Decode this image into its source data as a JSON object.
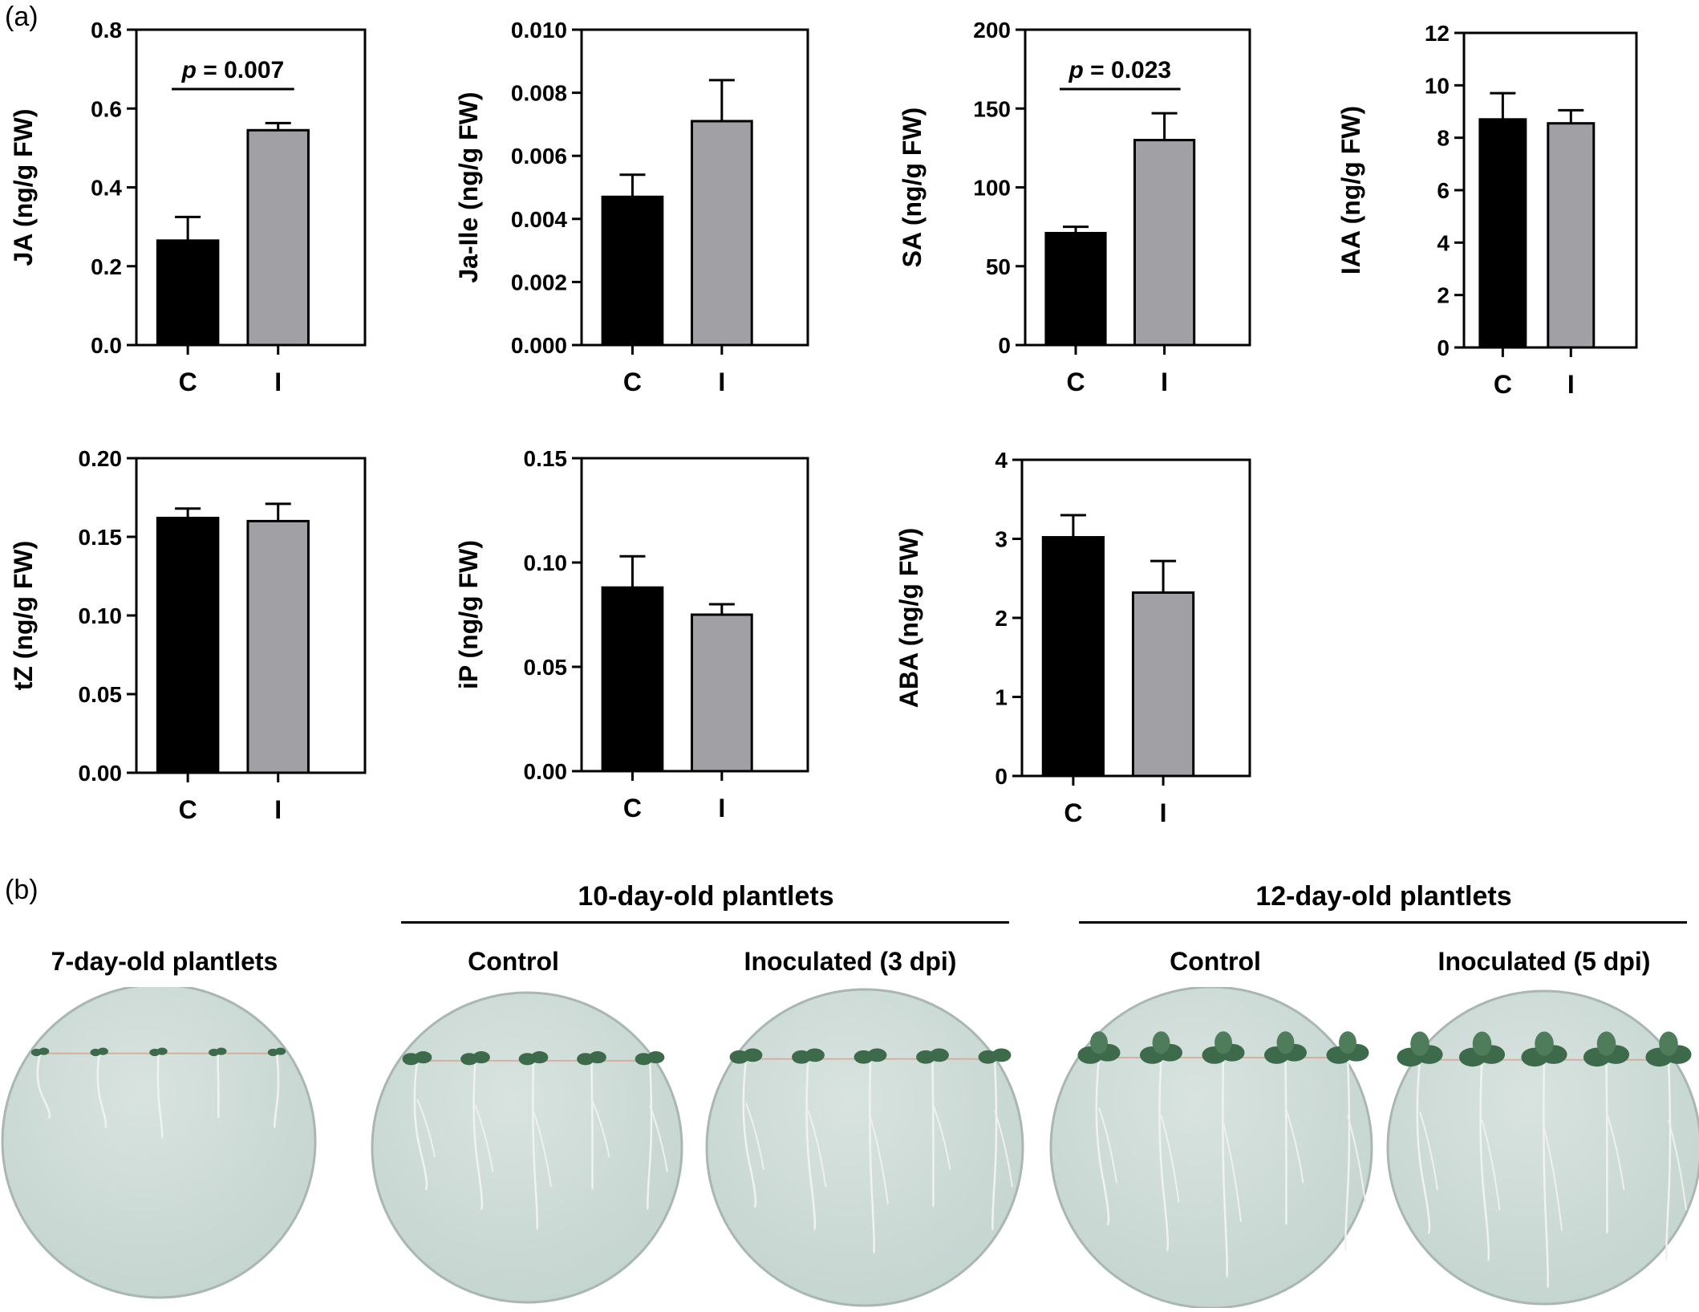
{
  "panel_a_label": "(a)",
  "panel_b_label": "(b)",
  "chart_data": [
    {
      "type": "bar",
      "categories": [
        "C",
        "I"
      ],
      "values": [
        0.265,
        0.545
      ],
      "errors": [
        0.06,
        0.018
      ],
      "ylabel": "JA (ng/g FW)",
      "ylim": [
        0,
        0.8
      ],
      "yticks": [
        "0.0",
        "0.2",
        "0.4",
        "0.6",
        "0.8"
      ],
      "significance": "= 0.007",
      "colors": [
        "#000000",
        "#a0a0a5"
      ]
    },
    {
      "type": "bar",
      "categories": [
        "C",
        "I"
      ],
      "values": [
        0.0047,
        0.0071
      ],
      "errors": [
        0.0007,
        0.0013
      ],
      "ylabel": "Ja-Ile (ng/g FW)",
      "ylim": [
        0,
        0.01
      ],
      "yticks": [
        "0.000",
        "0.002",
        "0.004",
        "0.006",
        "0.008",
        "0.010"
      ],
      "colors": [
        "#000000",
        "#a0a0a5"
      ]
    },
    {
      "type": "bar",
      "categories": [
        "C",
        "I"
      ],
      "values": [
        71,
        130
      ],
      "errors": [
        4,
        17
      ],
      "ylabel": "SA (ng/g FW)",
      "ylim": [
        0,
        200
      ],
      "yticks": [
        "0",
        "50",
        "100",
        "150",
        "200"
      ],
      "significance": "= 0.023",
      "colors": [
        "#000000",
        "#a0a0a5"
      ]
    },
    {
      "type": "bar",
      "categories": [
        "C",
        "I"
      ],
      "values": [
        8.7,
        8.55
      ],
      "errors": [
        1.0,
        0.5
      ],
      "ylabel": "IAA (ng/g FW)",
      "ylim": [
        0,
        12
      ],
      "yticks": [
        "0",
        "2",
        "4",
        "6",
        "8",
        "10",
        "12"
      ],
      "colors": [
        "#000000",
        "#a0a0a5"
      ]
    },
    {
      "type": "bar",
      "categories": [
        "C",
        "I"
      ],
      "values": [
        0.162,
        0.16
      ],
      "errors": [
        0.006,
        0.011
      ],
      "ylabel": "tZ (ng/g FW)",
      "ylim": [
        0,
        0.2
      ],
      "yticks": [
        "0.00",
        "0.05",
        "0.10",
        "0.15",
        "0.20"
      ],
      "colors": [
        "#000000",
        "#a0a0a5"
      ]
    },
    {
      "type": "bar",
      "categories": [
        "C",
        "I"
      ],
      "values": [
        0.088,
        0.075
      ],
      "errors": [
        0.015,
        0.005
      ],
      "ylabel": "iP (ng/g FW)",
      "ylim": [
        0,
        0.15
      ],
      "yticks": [
        "0.00",
        "0.05",
        "0.10",
        "0.15"
      ],
      "colors": [
        "#000000",
        "#a0a0a5"
      ]
    },
    {
      "type": "bar",
      "categories": [
        "C",
        "I"
      ],
      "values": [
        3.02,
        2.32
      ],
      "errors": [
        0.28,
        0.4
      ],
      "ylabel": "ABA (ng/g FW)",
      "ylim": [
        0,
        4
      ],
      "yticks": [
        "0",
        "1",
        "2",
        "3",
        "4"
      ],
      "colors": [
        "#000000",
        "#a0a0a5"
      ]
    }
  ],
  "plates": {
    "group_10": "10-day-old plantlets",
    "group_12": "12-day-old plantlets",
    "titles": [
      "7-day-old plantlets",
      "Control",
      "Inoculated (3 dpi)",
      "Control",
      "Inoculated (5 dpi)"
    ],
    "media_color": "#c4d4cf",
    "leaf_color": "#3d6a4a"
  }
}
